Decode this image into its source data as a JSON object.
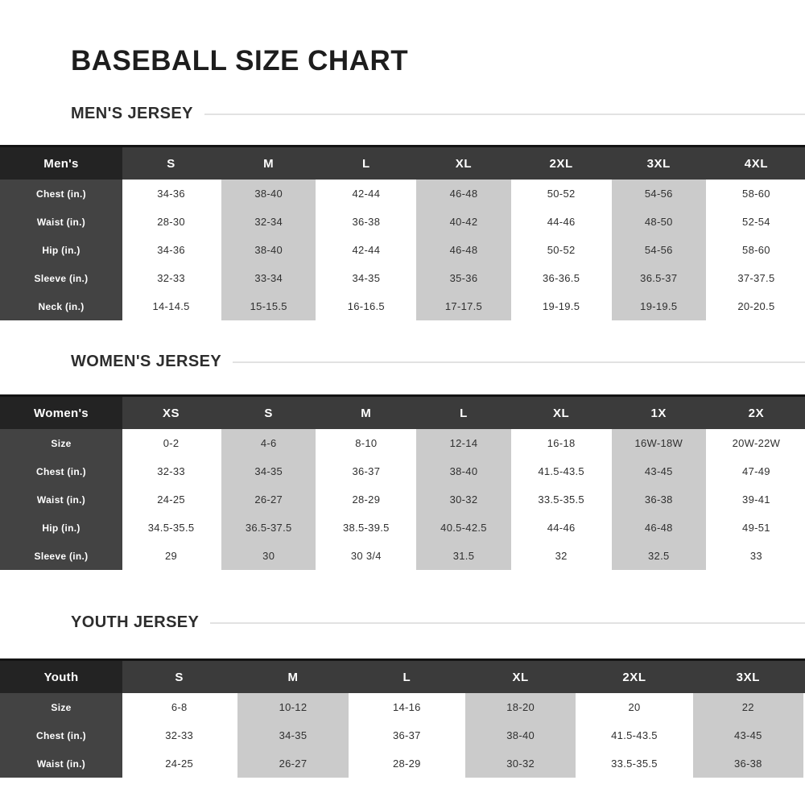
{
  "page_title": "BASEBALL SIZE CHART",
  "colors": {
    "header_bg": "#3b3b3b",
    "header_corner_bg": "#232323",
    "row_label_bg": "#434343",
    "highlight_column_bg": "#cbcbcb",
    "table_top_border": "#141414",
    "heading_text": "#2d2d2d",
    "divider": "#e2e2e2"
  },
  "sections": [
    {
      "heading": "MEN'S JERSEY",
      "table": {
        "corner_label": "Men's",
        "label_col_width": 152,
        "columns": [
          "S",
          "M",
          "L",
          "XL",
          "2XL",
          "3XL",
          "4XL"
        ],
        "highlighted_columns": [
          1,
          3,
          5
        ],
        "rows": [
          {
            "label": "Chest (in.)",
            "values": [
              "34-36",
              "38-40",
              "42-44",
              "46-48",
              "50-52",
              "54-56",
              "58-60"
            ]
          },
          {
            "label": "Waist (in.)",
            "values": [
              "28-30",
              "32-34",
              "36-38",
              "40-42",
              "44-46",
              "48-50",
              "52-54"
            ]
          },
          {
            "label": "Hip (in.)",
            "values": [
              "34-36",
              "38-40",
              "42-44",
              "46-48",
              "50-52",
              "54-56",
              "58-60"
            ]
          },
          {
            "label": "Sleeve (in.)",
            "values": [
              "32-33",
              "33-34",
              "34-35",
              "35-36",
              "36-36.5",
              "36.5-37",
              "37-37.5"
            ]
          },
          {
            "label": "Neck (in.)",
            "values": [
              "14-14.5",
              "15-15.5",
              "16-16.5",
              "17-17.5",
              "19-19.5",
              "19-19.5",
              "20-20.5"
            ]
          }
        ]
      }
    },
    {
      "heading": "WOMEN'S JERSEY",
      "table": {
        "corner_label": "Women's",
        "label_col_width": 152,
        "columns": [
          "XS",
          "S",
          "M",
          "L",
          "XL",
          "1X",
          "2X"
        ],
        "highlighted_columns": [
          1,
          3,
          5
        ],
        "rows": [
          {
            "label": "Size",
            "values": [
              "0-2",
              "4-6",
              "8-10",
              "12-14",
              "16-18",
              "16W-18W",
              "20W-22W"
            ]
          },
          {
            "label": "Chest (in.)",
            "values": [
              "32-33",
              "34-35",
              "36-37",
              "38-40",
              "41.5-43.5",
              "43-45",
              "47-49"
            ]
          },
          {
            "label": "Waist (in.)",
            "values": [
              "24-25",
              "26-27",
              "28-29",
              "30-32",
              "33.5-35.5",
              "36-38",
              "39-41"
            ]
          },
          {
            "label": "Hip (in.)",
            "values": [
              "34.5-35.5",
              "36.5-37.5",
              "38.5-39.5",
              "40.5-42.5",
              "44-46",
              "46-48",
              "49-51"
            ]
          },
          {
            "label": "Sleeve (in.)",
            "values": [
              "29",
              "30",
              "30 3/4",
              "31.5",
              "32",
              "32.5",
              "33"
            ]
          }
        ]
      }
    },
    {
      "heading": "YOUTH JERSEY",
      "table": {
        "corner_label": "Youth",
        "label_col_width": 152,
        "columns": [
          "S",
          "M",
          "L",
          "XL",
          "2XL",
          "3XL"
        ],
        "highlighted_columns": [
          1,
          3,
          5
        ],
        "rows": [
          {
            "label": "Size",
            "values": [
              "6-8",
              "10-12",
              "14-16",
              "18-20",
              "20",
              "22"
            ]
          },
          {
            "label": "Chest (in.)",
            "values": [
              "32-33",
              "34-35",
              "36-37",
              "38-40",
              "41.5-43.5",
              "43-45"
            ]
          },
          {
            "label": "Waist (in.)",
            "values": [
              "24-25",
              "26-27",
              "28-29",
              "30-32",
              "33.5-35.5",
              "36-38"
            ]
          }
        ]
      }
    }
  ]
}
